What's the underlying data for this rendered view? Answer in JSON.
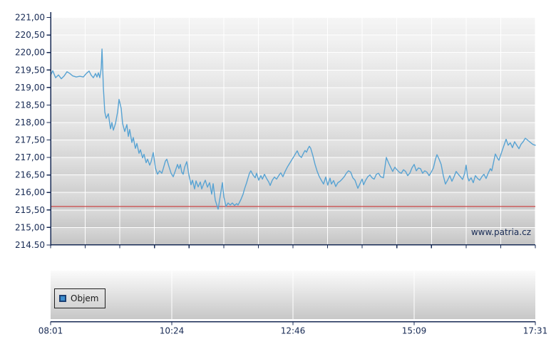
{
  "chart_data": {
    "type": "line",
    "title": "",
    "xlabel": "",
    "ylabel": "",
    "watermark": "www.patria.cz",
    "legend": {
      "label": "Objem",
      "marker_color": "#3c8ecf",
      "marker_border": "#1b3f73"
    },
    "x_axis": {
      "tick_labels": [
        "08:01",
        "10:24",
        "12:46",
        "15:09",
        "17:31"
      ],
      "start_minute": 0,
      "end_minute": 570,
      "minor_vertical_divisions": 14
    },
    "y_axis": {
      "tick_labels": [
        "221,00",
        "220,50",
        "220,00",
        "219,50",
        "219,00",
        "218,50",
        "218,00",
        "217,50",
        "217,00",
        "216,50",
        "216,00",
        "215,50",
        "215,00",
        "214.50"
      ],
      "ylim": [
        214.5,
        221.0
      ],
      "tick_step": 0.5
    },
    "reference_line": {
      "value": 215.6,
      "color": "#cc4646"
    },
    "grid": true,
    "series": [
      {
        "name": "price",
        "color": "#58a3d3",
        "points": [
          [
            0,
            219.35
          ],
          [
            2.5,
            219.48
          ],
          [
            5.9,
            219.28
          ],
          [
            9.2,
            219.36
          ],
          [
            12.6,
            219.25
          ],
          [
            15.9,
            219.33
          ],
          [
            19.3,
            219.45
          ],
          [
            22.6,
            219.4
          ],
          [
            26,
            219.33
          ],
          [
            30.2,
            219.3
          ],
          [
            34.4,
            219.32
          ],
          [
            38.6,
            219.3
          ],
          [
            41.9,
            219.4
          ],
          [
            45.3,
            219.47
          ],
          [
            47.8,
            219.35
          ],
          [
            50.3,
            219.28
          ],
          [
            52.8,
            219.4
          ],
          [
            54.5,
            219.3
          ],
          [
            56.2,
            219.42
          ],
          [
            57.8,
            219.28
          ],
          [
            59.5,
            219.55
          ],
          [
            60.4,
            220.1
          ],
          [
            61.2,
            219.6
          ],
          [
            62,
            219.0
          ],
          [
            63.7,
            218.3
          ],
          [
            65.4,
            218.12
          ],
          [
            67.9,
            218.25
          ],
          [
            70.4,
            217.82
          ],
          [
            72.1,
            218.0
          ],
          [
            73.8,
            217.78
          ],
          [
            76.3,
            217.97
          ],
          [
            78.8,
            218.3
          ],
          [
            80.5,
            218.66
          ],
          [
            83,
            218.4
          ],
          [
            84.7,
            217.97
          ],
          [
            87.2,
            217.74
          ],
          [
            89.7,
            217.94
          ],
          [
            91.4,
            217.6
          ],
          [
            93,
            217.8
          ],
          [
            95.6,
            217.43
          ],
          [
            97.2,
            217.57
          ],
          [
            99.7,
            217.26
          ],
          [
            101.4,
            217.4
          ],
          [
            103.9,
            217.12
          ],
          [
            105.6,
            217.22
          ],
          [
            108.1,
            216.99
          ],
          [
            109.8,
            217.09
          ],
          [
            112.3,
            216.85
          ],
          [
            114,
            216.95
          ],
          [
            116.5,
            216.78
          ],
          [
            118.2,
            216.88
          ],
          [
            120.7,
            217.14
          ],
          [
            123.2,
            216.7
          ],
          [
            125.7,
            216.52
          ],
          [
            128.2,
            216.62
          ],
          [
            130.8,
            216.55
          ],
          [
            132.4,
            216.68
          ],
          [
            135,
            216.9
          ],
          [
            136.6,
            216.95
          ],
          [
            139.1,
            216.75
          ],
          [
            141.7,
            216.55
          ],
          [
            144.2,
            216.45
          ],
          [
            146.7,
            216.62
          ],
          [
            149.2,
            216.8
          ],
          [
            150.9,
            216.68
          ],
          [
            152.6,
            216.8
          ],
          [
            154.2,
            216.58
          ],
          [
            155.9,
            216.52
          ],
          [
            157.6,
            216.72
          ],
          [
            160.1,
            216.88
          ],
          [
            162.6,
            216.5
          ],
          [
            165.1,
            216.22
          ],
          [
            166.8,
            216.35
          ],
          [
            169.3,
            216.1
          ],
          [
            171,
            216.33
          ],
          [
            173.5,
            216.16
          ],
          [
            176,
            216.3
          ],
          [
            177.7,
            216.1
          ],
          [
            180.2,
            216.26
          ],
          [
            181.9,
            216.35
          ],
          [
            184.4,
            216.15
          ],
          [
            186.9,
            216.28
          ],
          [
            189.4,
            215.95
          ],
          [
            191.1,
            216.25
          ],
          [
            193.6,
            215.78
          ],
          [
            197,
            215.52
          ],
          [
            199.5,
            215.9
          ],
          [
            202,
            216.28
          ],
          [
            203.7,
            215.88
          ],
          [
            206.2,
            215.6
          ],
          [
            208.7,
            215.7
          ],
          [
            211.2,
            215.64
          ],
          [
            213.7,
            215.7
          ],
          [
            216.3,
            215.63
          ],
          [
            218.8,
            215.68
          ],
          [
            220.4,
            215.64
          ],
          [
            222.1,
            215.72
          ],
          [
            223.8,
            215.8
          ],
          [
            226.3,
            215.95
          ],
          [
            228,
            216.1
          ],
          [
            230.5,
            216.28
          ],
          [
            232.2,
            216.42
          ],
          [
            233.9,
            216.55
          ],
          [
            235.5,
            216.62
          ],
          [
            238.1,
            216.5
          ],
          [
            240.6,
            216.42
          ],
          [
            242.2,
            216.55
          ],
          [
            244.8,
            216.35
          ],
          [
            247.3,
            216.48
          ],
          [
            249,
            216.38
          ],
          [
            251.5,
            216.52
          ],
          [
            254,
            216.4
          ],
          [
            256.5,
            216.3
          ],
          [
            258.2,
            216.2
          ],
          [
            260.7,
            216.35
          ],
          [
            263.2,
            216.44
          ],
          [
            265.7,
            216.38
          ],
          [
            268.2,
            216.48
          ],
          [
            270.7,
            216.56
          ],
          [
            273.2,
            216.45
          ],
          [
            275.8,
            216.6
          ],
          [
            278.3,
            216.72
          ],
          [
            280.8,
            216.82
          ],
          [
            283.3,
            216.92
          ],
          [
            285.8,
            217.02
          ],
          [
            288.3,
            217.12
          ],
          [
            290,
            217.19
          ],
          [
            292.5,
            217.05
          ],
          [
            295,
            217.0
          ],
          [
            297.6,
            217.13
          ],
          [
            299.2,
            217.2
          ],
          [
            300.9,
            217.15
          ],
          [
            302.6,
            217.25
          ],
          [
            304.3,
            217.32
          ],
          [
            305.9,
            217.26
          ],
          [
            308.4,
            217.05
          ],
          [
            311,
            216.8
          ],
          [
            313.5,
            216.6
          ],
          [
            316,
            216.45
          ],
          [
            318.5,
            216.34
          ],
          [
            321,
            216.24
          ],
          [
            323.5,
            216.44
          ],
          [
            326,
            216.21
          ],
          [
            328.6,
            216.41
          ],
          [
            330.2,
            216.24
          ],
          [
            332.8,
            216.34
          ],
          [
            335.3,
            216.17
          ],
          [
            337.8,
            216.28
          ],
          [
            340.3,
            216.32
          ],
          [
            342.8,
            216.38
          ],
          [
            345.3,
            216.45
          ],
          [
            347.8,
            216.55
          ],
          [
            350.3,
            216.62
          ],
          [
            352.9,
            216.58
          ],
          [
            355.4,
            216.42
          ],
          [
            357.9,
            216.35
          ],
          [
            361.3,
            216.12
          ],
          [
            363.8,
            216.25
          ],
          [
            366.3,
            216.38
          ],
          [
            368,
            216.22
          ],
          [
            370.5,
            216.35
          ],
          [
            373,
            216.45
          ],
          [
            375.5,
            216.5
          ],
          [
            378,
            216.42
          ],
          [
            380.5,
            216.38
          ],
          [
            383.1,
            216.52
          ],
          [
            385.6,
            216.55
          ],
          [
            388.1,
            216.45
          ],
          [
            391.4,
            216.42
          ],
          [
            394.8,
            217.0
          ],
          [
            397.3,
            216.85
          ],
          [
            399.8,
            216.72
          ],
          [
            402.3,
            216.6
          ],
          [
            404.8,
            216.72
          ],
          [
            407.3,
            216.65
          ],
          [
            409.9,
            216.58
          ],
          [
            412.4,
            216.55
          ],
          [
            414.9,
            216.65
          ],
          [
            417.4,
            216.6
          ],
          [
            419.9,
            216.48
          ],
          [
            422.4,
            216.55
          ],
          [
            424.9,
            216.7
          ],
          [
            427.5,
            216.8
          ],
          [
            430,
            216.62
          ],
          [
            432.5,
            216.7
          ],
          [
            435,
            216.68
          ],
          [
            437.5,
            216.55
          ],
          [
            440,
            216.62
          ],
          [
            442.5,
            216.58
          ],
          [
            445.1,
            216.48
          ],
          [
            447.6,
            216.58
          ],
          [
            450.1,
            216.7
          ],
          [
            452.6,
            216.95
          ],
          [
            454.3,
            217.08
          ],
          [
            456.8,
            216.95
          ],
          [
            459.3,
            216.8
          ],
          [
            461.8,
            216.48
          ],
          [
            464.3,
            216.24
          ],
          [
            466.8,
            216.35
          ],
          [
            469.4,
            216.48
          ],
          [
            471.9,
            216.32
          ],
          [
            474.4,
            216.45
          ],
          [
            476.9,
            216.6
          ],
          [
            479.4,
            216.52
          ],
          [
            481.9,
            216.45
          ],
          [
            484.4,
            216.37
          ],
          [
            487,
            216.55
          ],
          [
            488.6,
            216.78
          ],
          [
            490.3,
            216.45
          ],
          [
            492,
            216.33
          ],
          [
            494.5,
            216.42
          ],
          [
            497,
            216.28
          ],
          [
            499.5,
            216.48
          ],
          [
            502.1,
            216.4
          ],
          [
            504.6,
            216.35
          ],
          [
            507.1,
            216.45
          ],
          [
            509.6,
            216.52
          ],
          [
            512.1,
            216.4
          ],
          [
            514.6,
            216.55
          ],
          [
            517.1,
            216.68
          ],
          [
            518.8,
            216.62
          ],
          [
            523,
            217.1
          ],
          [
            525.5,
            216.98
          ],
          [
            527.2,
            216.92
          ],
          [
            529.7,
            217.1
          ],
          [
            532.2,
            217.28
          ],
          [
            535.6,
            217.52
          ],
          [
            538.1,
            217.35
          ],
          [
            540.6,
            217.42
          ],
          [
            543.1,
            217.28
          ],
          [
            545.6,
            217.45
          ],
          [
            548.1,
            217.35
          ],
          [
            550.7,
            217.25
          ],
          [
            553.2,
            217.38
          ],
          [
            555.7,
            217.45
          ],
          [
            558.2,
            217.55
          ],
          [
            560.7,
            217.5
          ],
          [
            563.2,
            217.45
          ],
          [
            565.7,
            217.4
          ],
          [
            567.4,
            217.37
          ],
          [
            570,
            217.35
          ]
        ]
      }
    ],
    "colors": {
      "axis": "#172a54",
      "plot_bg_top": "#f2f2f2",
      "plot_bg_bottom": "#c3c3c3",
      "panel_bg_top": "#fbfbfb",
      "panel_bg_bottom": "#c7c7c7",
      "gridline": "#ffffff"
    }
  }
}
